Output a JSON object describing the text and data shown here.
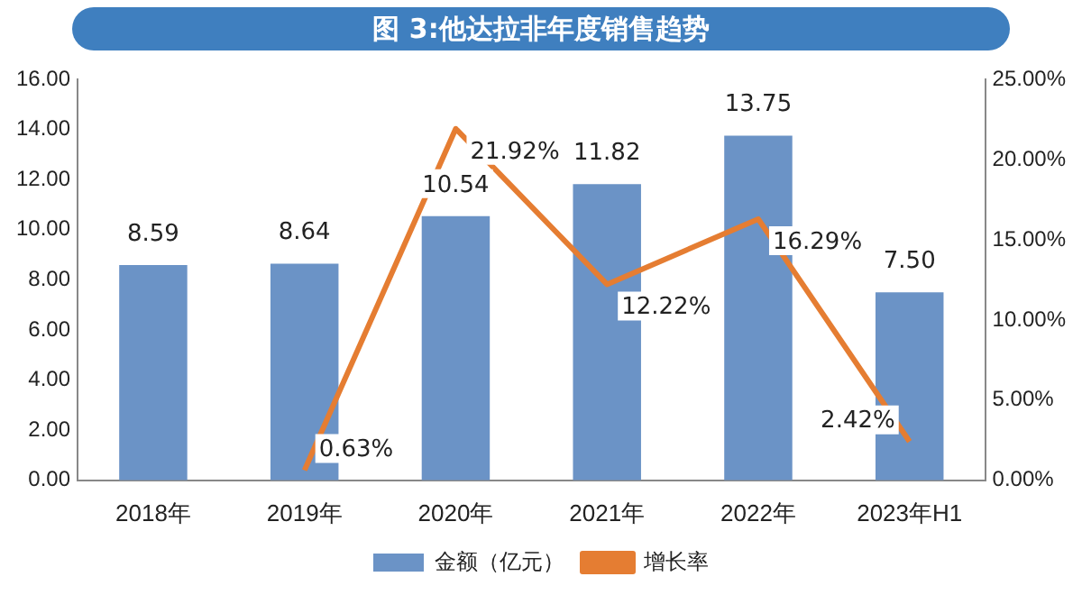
{
  "chart_data": {
    "type": "bar",
    "title": "图 3:他达拉非年度销售趋势",
    "categories": [
      "2018年",
      "2019年",
      "2020年",
      "2021年",
      "2022年",
      "2023年H1"
    ],
    "series": [
      {
        "name": "金额（亿元）",
        "color": "#6b93c6",
        "values": [
          8.59,
          8.64,
          10.54,
          11.82,
          13.75,
          7.5
        ],
        "value_labels": [
          "8.59",
          "8.64",
          "10.54",
          "11.82",
          "13.75",
          "7.50"
        ]
      },
      {
        "name": "增长率",
        "type": "line",
        "axis": "y2",
        "color": "#e57d32",
        "values": [
          null,
          0.63,
          21.92,
          12.22,
          16.29,
          2.42
        ],
        "value_labels": [
          null,
          "0.63%",
          "21.92%",
          "12.22%",
          "16.29%",
          "2.42%"
        ]
      }
    ],
    "ylim": [
      0,
      16
    ],
    "yticks": [
      {
        "value": 0,
        "label": "0.00"
      },
      {
        "value": 2,
        "label": "2.00"
      },
      {
        "value": 4,
        "label": "4.00"
      },
      {
        "value": 6,
        "label": "6.00"
      },
      {
        "value": 8,
        "label": "8.00"
      },
      {
        "value": 10,
        "label": "10.00"
      },
      {
        "value": 12,
        "label": "12.00"
      },
      {
        "value": 14,
        "label": "14.00"
      },
      {
        "value": 16,
        "label": "16.00"
      }
    ],
    "y2lim": [
      0,
      25
    ],
    "y2ticks": [
      {
        "value": 0,
        "label": "0.00%"
      },
      {
        "value": 5,
        "label": "5.00%"
      },
      {
        "value": 10,
        "label": "10.00%"
      },
      {
        "value": 15,
        "label": "15.00%"
      },
      {
        "value": 20,
        "label": "20.00%"
      },
      {
        "value": 25,
        "label": "25.00%"
      }
    ],
    "legend": "bottom",
    "grid": false,
    "marker": "none",
    "line_style": "solid"
  }
}
